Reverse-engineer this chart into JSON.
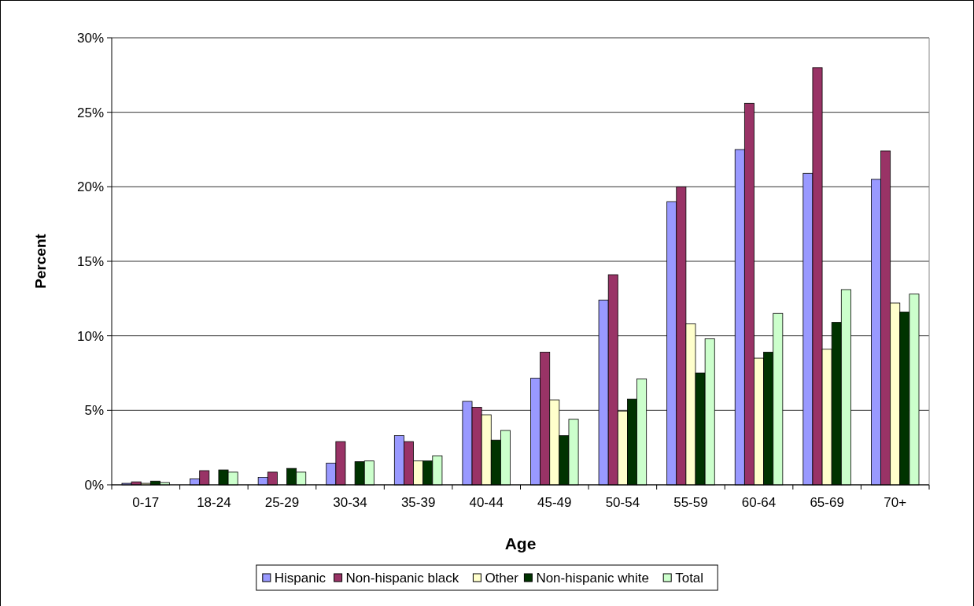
{
  "chart_data": {
    "type": "bar",
    "xlabel": "Age",
    "ylabel": "Percent",
    "categories": [
      "0-17",
      "18-24",
      "25-29",
      "30-34",
      "35-39",
      "40-44",
      "45-49",
      "50-54",
      "55-59",
      "60-64",
      "65-69",
      "70+"
    ],
    "series": [
      {
        "name": "Hispanic",
        "color": "#9999ff",
        "values": [
          0.1,
          0.4,
          0.5,
          1.45,
          3.3,
          5.6,
          7.15,
          12.4,
          19.0,
          22.5,
          20.9,
          20.5
        ]
      },
      {
        "name": "Non-hispanic black",
        "color": "#993366",
        "values": [
          0.2,
          0.95,
          0.85,
          2.9,
          2.9,
          5.2,
          8.9,
          14.1,
          20.0,
          25.6,
          28.0,
          22.4
        ]
      },
      {
        "name": "Other",
        "color": "#ffffcc",
        "values": [
          0.1,
          0,
          0,
          0,
          1.6,
          4.7,
          5.7,
          4.95,
          10.8,
          8.5,
          9.1,
          12.2
        ]
      },
      {
        "name": "Non-hispanic white",
        "color": "#003300",
        "values": [
          0.25,
          1.0,
          1.1,
          1.55,
          1.6,
          3.0,
          3.3,
          5.75,
          7.5,
          8.9,
          10.9,
          11.6
        ]
      },
      {
        "name": "Total",
        "color": "#ccffcc",
        "values": [
          0.15,
          0.85,
          0.85,
          1.6,
          1.95,
          3.65,
          4.4,
          7.1,
          9.8,
          11.5,
          13.1,
          12.8
        ]
      }
    ],
    "ylim": [
      0,
      30
    ],
    "yticks": [
      {
        "value": 0,
        "label": "0%"
      },
      {
        "value": 5,
        "label": "5%"
      },
      {
        "value": 10,
        "label": "10%"
      },
      {
        "value": 15,
        "label": "15%"
      },
      {
        "value": 20,
        "label": "20%"
      },
      {
        "value": 25,
        "label": "25%"
      },
      {
        "value": 30,
        "label": "30%"
      }
    ],
    "grid": "y",
    "legend": "bottom"
  }
}
